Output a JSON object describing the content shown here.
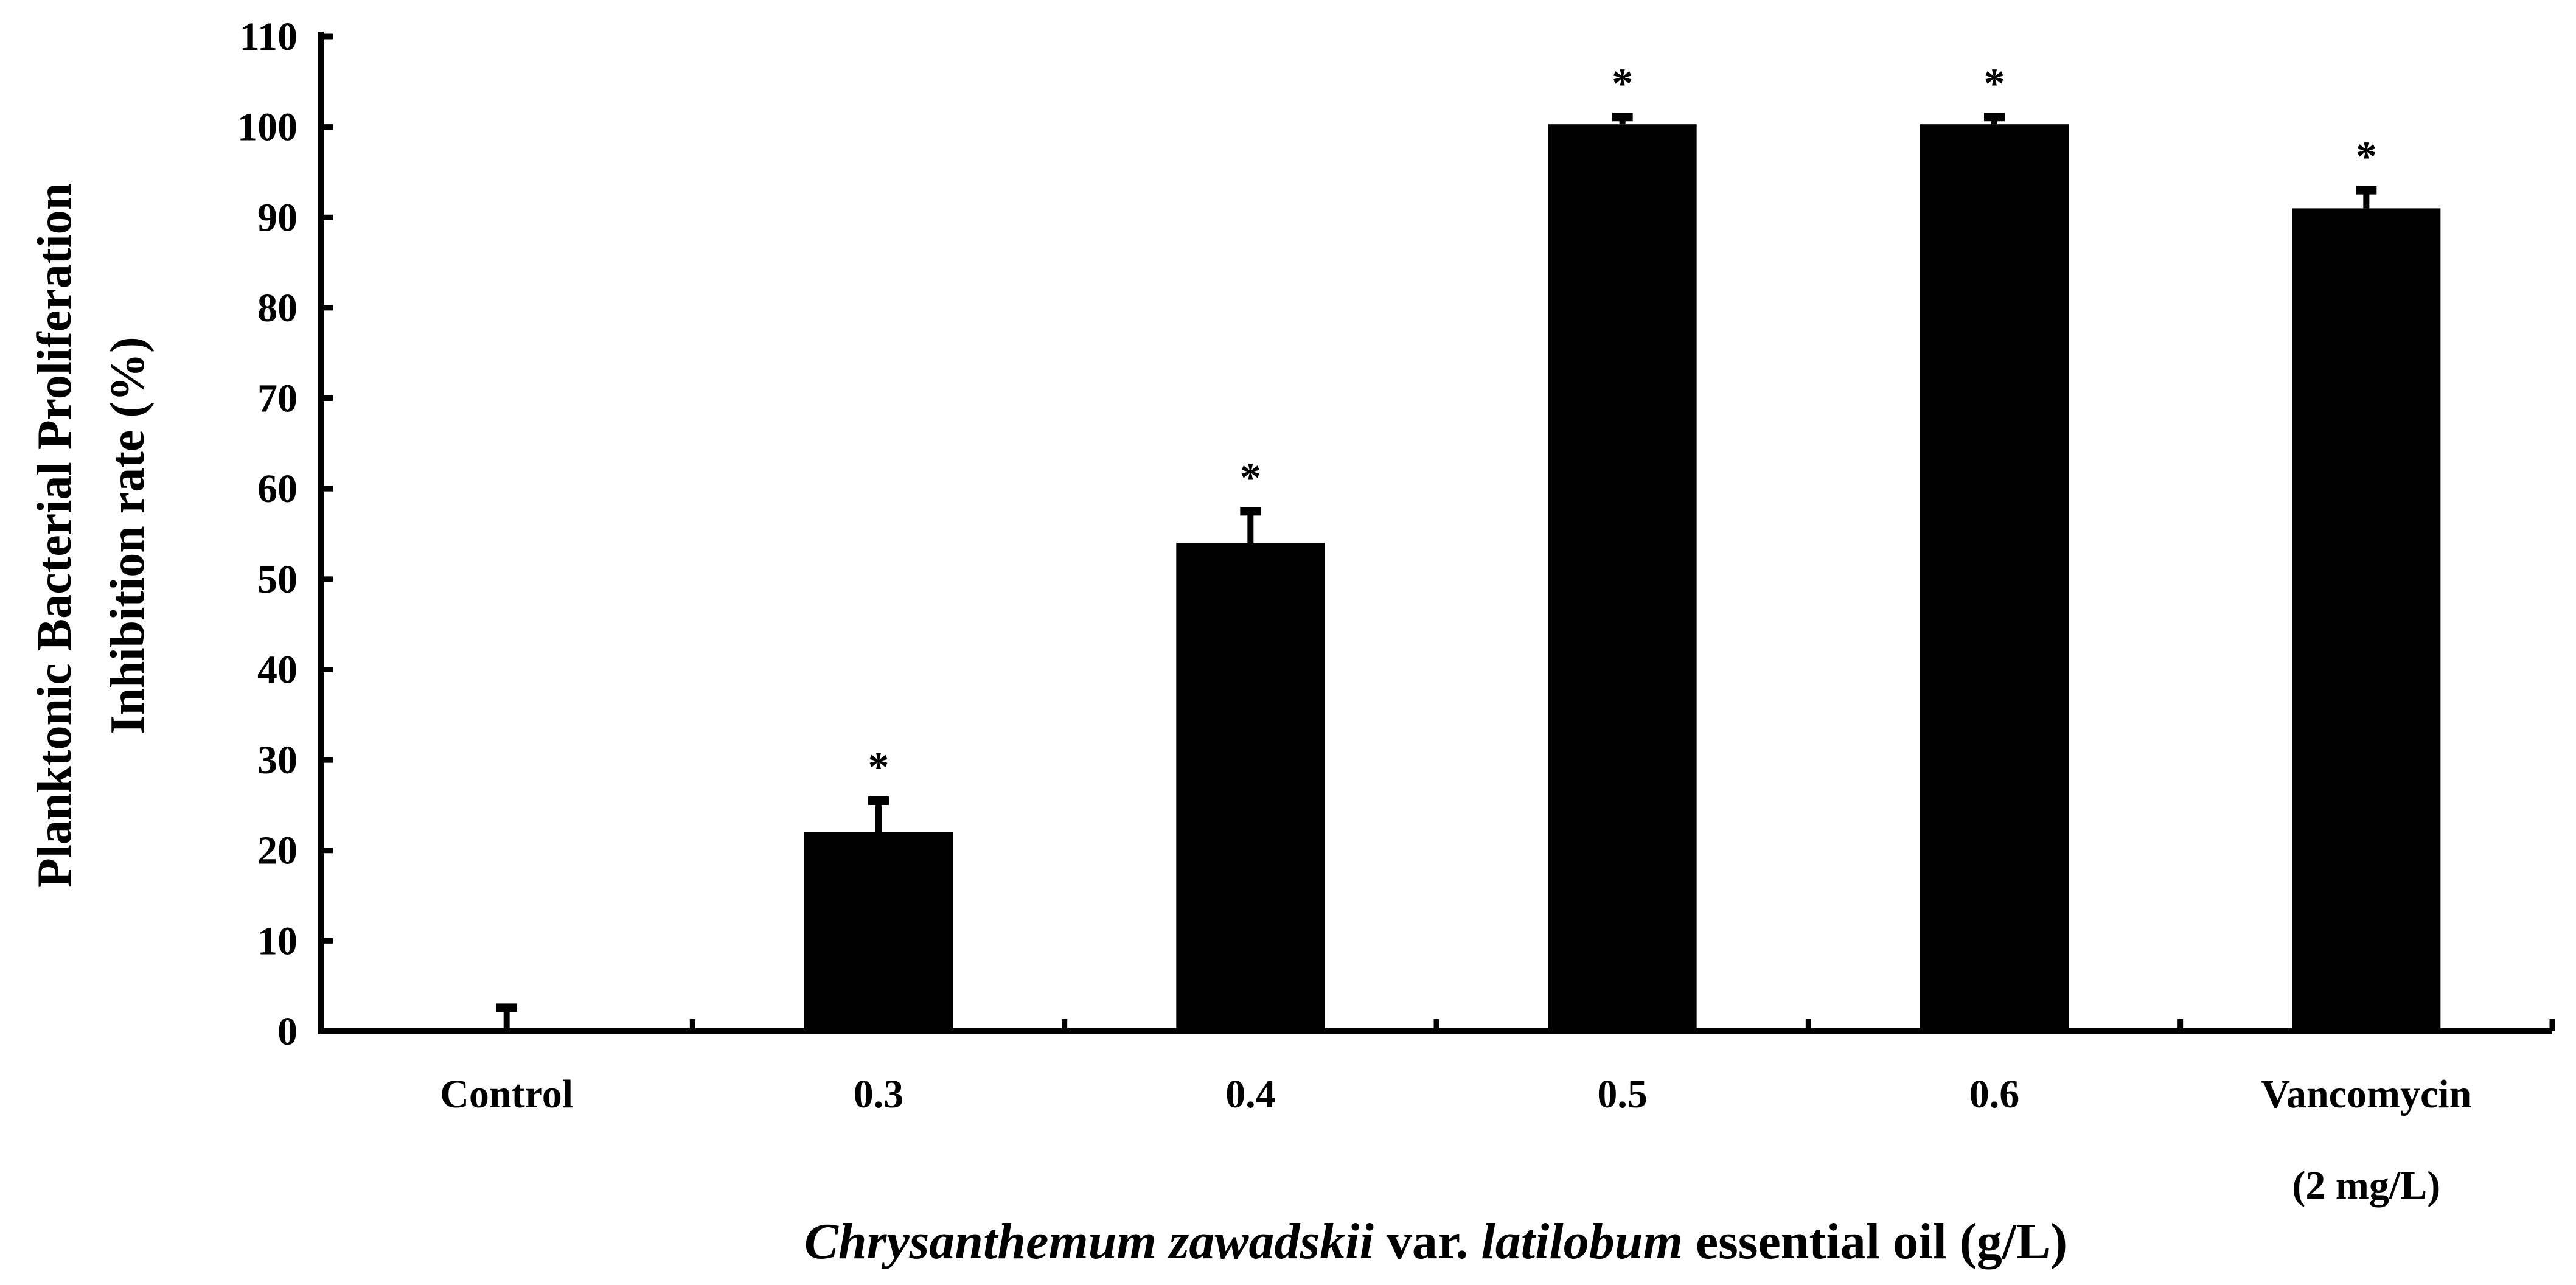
{
  "chart_data": {
    "type": "bar",
    "title": "",
    "ylabel_line1": "Planktonic Bacterial Proliferation",
    "ylabel_line2": "Inhibition rate (%)",
    "xlabel_parts": [
      {
        "text": "Chrysanthemum zawadskii",
        "italic": true
      },
      {
        "text": " var. ",
        "italic": false
      },
      {
        "text": "latilobum",
        "italic": true
      },
      {
        "text": " essential oil (g/L)",
        "italic": false
      }
    ],
    "ylim": [
      0,
      110
    ],
    "yticks": [
      0,
      10,
      20,
      30,
      40,
      50,
      60,
      70,
      80,
      90,
      100,
      110
    ],
    "grid": false,
    "categories": [
      {
        "lines": [
          "Control"
        ]
      },
      {
        "lines": [
          "0.3"
        ]
      },
      {
        "lines": [
          "0.4"
        ]
      },
      {
        "lines": [
          "0.5"
        ]
      },
      {
        "lines": [
          "0.6"
        ]
      },
      {
        "lines": [
          "Vancomycin",
          "(2 mg/L)"
        ]
      }
    ],
    "values": [
      0,
      22,
      54,
      100.3,
      100.3,
      91
    ],
    "errors": [
      2.6,
      3.5,
      3.5,
      0.8,
      0.8,
      2.0
    ],
    "significance": [
      "",
      "*",
      "*",
      "*",
      "*",
      "*"
    ],
    "bar_color": "#000000"
  }
}
